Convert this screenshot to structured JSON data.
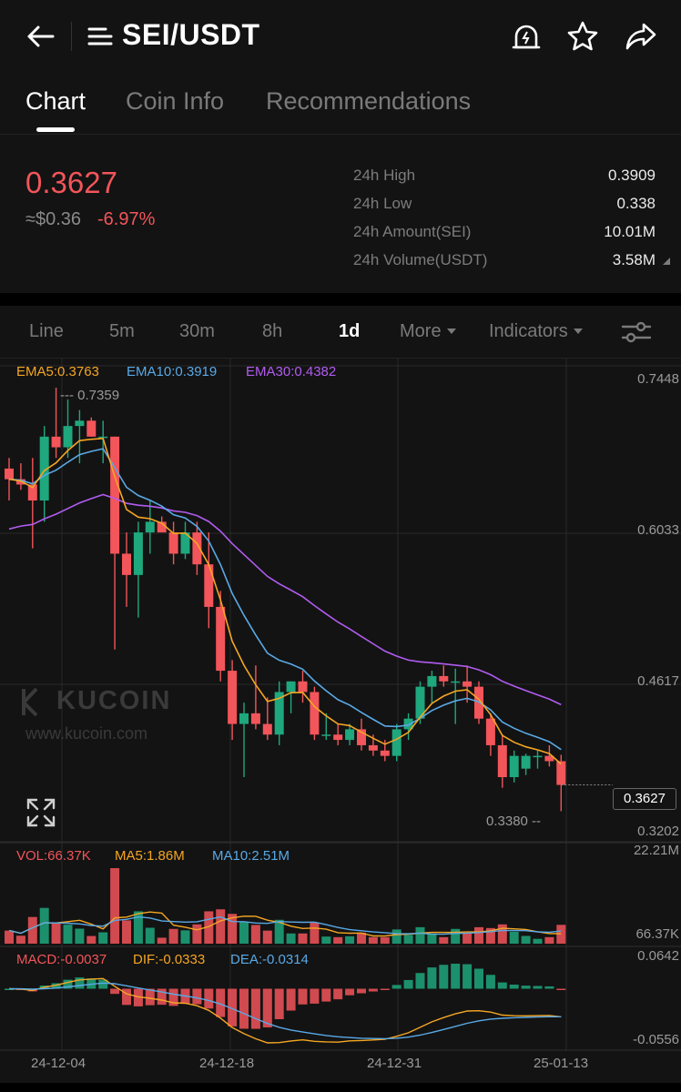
{
  "header": {
    "title": "SEI/USDT",
    "icons": [
      "back-arrow-icon",
      "menu-lines-icon",
      "price-alert-icon",
      "star-icon",
      "share-icon"
    ]
  },
  "tabs": [
    {
      "label": "Chart",
      "active": true
    },
    {
      "label": "Coin Info",
      "active": false
    },
    {
      "label": "Recommendations",
      "active": false
    }
  ],
  "price": {
    "last": "0.3627",
    "usd": "≈$0.36",
    "change": "-6.97%",
    "down_color": "#f2555a",
    "up_color": "#1fa77d"
  },
  "stats": [
    {
      "label": "24h High",
      "value": "0.3909"
    },
    {
      "label": "24h Low",
      "value": "0.338"
    },
    {
      "label": "24h Amount(SEI)",
      "value": "10.01M"
    },
    {
      "label": "24h Volume(USDT)",
      "value": "3.58M"
    }
  ],
  "toolbar": {
    "intervals": [
      {
        "label": "Line",
        "active": false
      },
      {
        "label": "5m",
        "active": false
      },
      {
        "label": "30m",
        "active": false
      },
      {
        "label": "8h",
        "active": false
      },
      {
        "label": "1d",
        "active": true
      }
    ],
    "more": "More",
    "indicators": "Indicators"
  },
  "legend": {
    "ema5": "EMA5:0.3763",
    "ema10": "EMA10:0.3919",
    "ema30": "EMA30:0.4382",
    "vol": "VOL:66.37K",
    "ma5": "MA5:1.86M",
    "ma10": "MA10:2.51M",
    "macd": "MACD:-0.0037",
    "dif": "DIF:-0.0333",
    "dea": "DEA:-0.0314"
  },
  "watermark": {
    "logo": "KUCOIN",
    "url": "www.kucoin.com"
  },
  "chart_data": {
    "type": "candlestick",
    "price_axis": {
      "ticks": [
        "0.7448",
        "0.6033",
        "0.4617",
        "0.3202"
      ],
      "current": "0.3627"
    },
    "volume_axis": {
      "ticks": [
        "22.21M",
        "66.37K"
      ]
    },
    "macd_axis": {
      "ticks": [
        "0.0642",
        "-0.0556"
      ]
    },
    "annotations": {
      "high": "--- 0.7359",
      "low": "0.3380 --"
    },
    "dates": [
      "24-12-04",
      "24-12-18",
      "24-12-31",
      "25-01-13"
    ],
    "colors": {
      "up": "#1fa77d",
      "down": "#f2555a",
      "ema5": "#f5a623",
      "ema10": "#5aa9e6",
      "ema30": "#b15cf0"
    },
    "candles": [
      {
        "o": 0.66,
        "h": 0.67,
        "l": 0.63,
        "c": 0.65
      },
      {
        "o": 0.65,
        "h": 0.665,
        "l": 0.64,
        "c": 0.645
      },
      {
        "o": 0.645,
        "h": 0.67,
        "l": 0.585,
        "c": 0.63
      },
      {
        "o": 0.63,
        "h": 0.7,
        "l": 0.61,
        "c": 0.69
      },
      {
        "o": 0.69,
        "h": 0.736,
        "l": 0.67,
        "c": 0.68
      },
      {
        "o": 0.68,
        "h": 0.725,
        "l": 0.67,
        "c": 0.7
      },
      {
        "o": 0.7,
        "h": 0.715,
        "l": 0.665,
        "c": 0.705
      },
      {
        "o": 0.705,
        "h": 0.708,
        "l": 0.69,
        "c": 0.69
      },
      {
        "o": 0.69,
        "h": 0.705,
        "l": 0.665,
        "c": 0.69
      },
      {
        "o": 0.69,
        "h": 0.69,
        "l": 0.49,
        "c": 0.58
      },
      {
        "o": 0.58,
        "h": 0.6,
        "l": 0.53,
        "c": 0.56
      },
      {
        "o": 0.56,
        "h": 0.61,
        "l": 0.52,
        "c": 0.6
      },
      {
        "o": 0.6,
        "h": 0.63,
        "l": 0.58,
        "c": 0.61
      },
      {
        "o": 0.61,
        "h": 0.615,
        "l": 0.6,
        "c": 0.6
      },
      {
        "o": 0.6,
        "h": 0.61,
        "l": 0.57,
        "c": 0.58
      },
      {
        "o": 0.58,
        "h": 0.61,
        "l": 0.575,
        "c": 0.6
      },
      {
        "o": 0.6,
        "h": 0.61,
        "l": 0.56,
        "c": 0.57
      },
      {
        "o": 0.57,
        "h": 0.6,
        "l": 0.51,
        "c": 0.53
      },
      {
        "o": 0.53,
        "h": 0.545,
        "l": 0.46,
        "c": 0.47
      },
      {
        "o": 0.47,
        "h": 0.48,
        "l": 0.405,
        "c": 0.42
      },
      {
        "o": 0.42,
        "h": 0.44,
        "l": 0.37,
        "c": 0.43
      },
      {
        "o": 0.43,
        "h": 0.475,
        "l": 0.415,
        "c": 0.42
      },
      {
        "o": 0.42,
        "h": 0.445,
        "l": 0.405,
        "c": 0.41
      },
      {
        "o": 0.41,
        "h": 0.46,
        "l": 0.4,
        "c": 0.45
      },
      {
        "o": 0.45,
        "h": 0.46,
        "l": 0.43,
        "c": 0.46
      },
      {
        "o": 0.46,
        "h": 0.47,
        "l": 0.44,
        "c": 0.45
      },
      {
        "o": 0.45,
        "h": 0.455,
        "l": 0.405,
        "c": 0.41
      },
      {
        "o": 0.41,
        "h": 0.43,
        "l": 0.405,
        "c": 0.41
      },
      {
        "o": 0.41,
        "h": 0.42,
        "l": 0.4,
        "c": 0.405
      },
      {
        "o": 0.405,
        "h": 0.42,
        "l": 0.4,
        "c": 0.415
      },
      {
        "o": 0.415,
        "h": 0.425,
        "l": 0.395,
        "c": 0.4
      },
      {
        "o": 0.4,
        "h": 0.41,
        "l": 0.39,
        "c": 0.395
      },
      {
        "o": 0.395,
        "h": 0.405,
        "l": 0.385,
        "c": 0.39
      },
      {
        "o": 0.39,
        "h": 0.42,
        "l": 0.385,
        "c": 0.415
      },
      {
        "o": 0.415,
        "h": 0.43,
        "l": 0.405,
        "c": 0.425
      },
      {
        "o": 0.425,
        "h": 0.46,
        "l": 0.42,
        "c": 0.455
      },
      {
        "o": 0.455,
        "h": 0.47,
        "l": 0.44,
        "c": 0.465
      },
      {
        "o": 0.465,
        "h": 0.475,
        "l": 0.455,
        "c": 0.46
      },
      {
        "o": 0.46,
        "h": 0.472,
        "l": 0.42,
        "c": 0.46
      },
      {
        "o": 0.46,
        "h": 0.475,
        "l": 0.44,
        "c": 0.455
      },
      {
        "o": 0.455,
        "h": 0.46,
        "l": 0.42,
        "c": 0.425
      },
      {
        "o": 0.425,
        "h": 0.43,
        "l": 0.39,
        "c": 0.4
      },
      {
        "o": 0.4,
        "h": 0.41,
        "l": 0.36,
        "c": 0.37
      },
      {
        "o": 0.37,
        "h": 0.395,
        "l": 0.365,
        "c": 0.39
      },
      {
        "o": 0.378,
        "h": 0.392,
        "l": 0.372,
        "c": 0.39
      },
      {
        "o": 0.39,
        "h": 0.395,
        "l": 0.378,
        "c": 0.39
      },
      {
        "o": 0.39,
        "h": 0.4,
        "l": 0.38,
        "c": 0.385
      },
      {
        "o": 0.385,
        "h": 0.391,
        "l": 0.338,
        "c": 0.3627
      }
    ]
  }
}
